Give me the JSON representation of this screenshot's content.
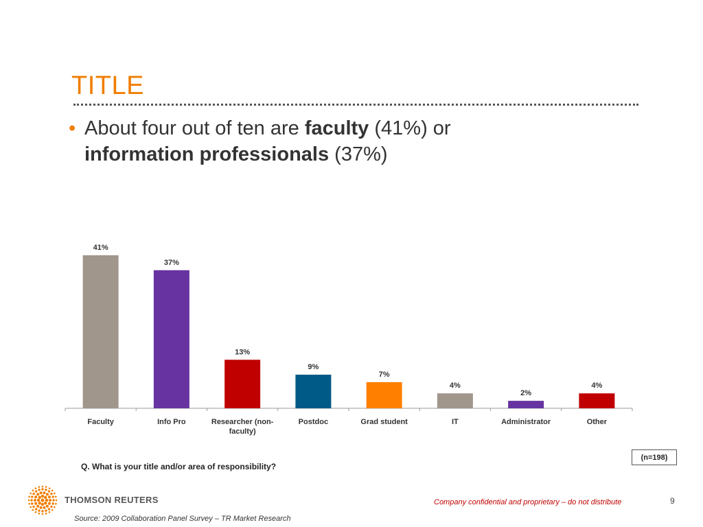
{
  "slide": {
    "title": "TITLE",
    "bullet": {
      "marker": "•",
      "part1": "About four out of ten are ",
      "bold1": "faculty",
      "part2": " (41%) or ",
      "bold2": "information professionals",
      "part3": " (37%)"
    },
    "question": "Q.  What is your title and/or area of responsibility?",
    "sample_size": "(n=198)",
    "logo_text": "THOMSON REUTERS",
    "confidential": "Company confidential and proprietary – do not distribute",
    "page_number": "9",
    "source": "Source:  2009 Collaboration Panel Survey – TR Market Research"
  },
  "colors": {
    "accent": "#f07d00",
    "grey": "#a0968c",
    "purple": "#6633a0",
    "red": "#c00000",
    "blue": "#005a87",
    "orange": "#ff8000"
  },
  "chart_data": {
    "type": "bar",
    "categories": [
      "Faculty",
      "Info Pro",
      "Researcher (non-faculty)",
      "Postdoc",
      "Grad student",
      "IT",
      "Administrator",
      "Other"
    ],
    "category_lines": [
      [
        "Faculty"
      ],
      [
        "Info Pro"
      ],
      [
        "Researcher (non-",
        "faculty)"
      ],
      [
        "Postdoc"
      ],
      [
        "Grad student"
      ],
      [
        "IT"
      ],
      [
        "Administrator"
      ],
      [
        "Other"
      ]
    ],
    "values": [
      41,
      37,
      13,
      9,
      7,
      4,
      2,
      4
    ],
    "value_labels": [
      "41%",
      "37%",
      "13%",
      "9%",
      "7%",
      "4%",
      "2%",
      "4%"
    ],
    "bar_colors": [
      "#a0968c",
      "#6633a0",
      "#c00000",
      "#005a87",
      "#ff8000",
      "#a0968c",
      "#6633a0",
      "#c00000"
    ],
    "unit": "%",
    "title": "",
    "xlabel": "",
    "ylabel": "",
    "ylim": [
      0,
      41
    ],
    "grid": false,
    "legend": "none"
  }
}
